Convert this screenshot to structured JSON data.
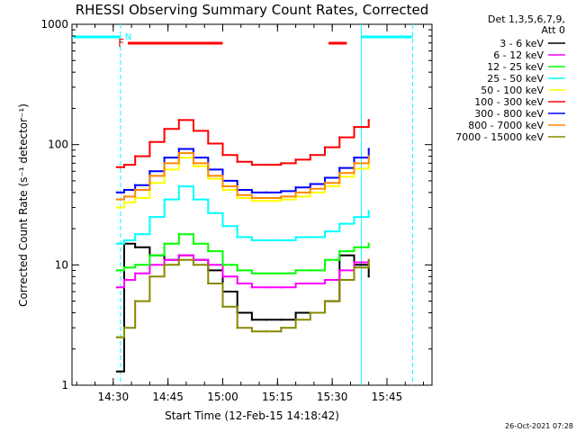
{
  "chart_data": {
    "type": "line",
    "title": "RHESSI Observing Summary Count Rates, Corrected",
    "xlabel": "Start Time (12-Feb-15 14:18:42)",
    "ylabel": "Corrected Count Rate (s⁻¹ detector⁻¹)",
    "y_scale": "log",
    "ylim": [
      1,
      1000
    ],
    "xlim": [
      "14:18:42",
      "15:57:20"
    ],
    "x_ticks": [
      "14:30",
      "14:45",
      "15:00",
      "15:15",
      "15:30",
      "15:45"
    ],
    "y_ticks": [
      "1",
      "10",
      "100",
      "1000"
    ],
    "grid": false,
    "legend_position": "top-right",
    "legend_header": [
      "Det 1,3,5,6,7,9,",
      "Att 0"
    ],
    "timestamp": "26-Oct-2021 07:28",
    "flags": {
      "flare_label": "F",
      "night_label": "N",
      "flare_bars": [
        [
          "14:34",
          "15:00"
        ],
        [
          "15:29",
          "15:34"
        ]
      ],
      "night_bars": [
        [
          "14:18:42",
          "14:32"
        ],
        [
          "15:38",
          "15:52"
        ]
      ],
      "night_boundaries": [
        "14:32",
        "15:38",
        "15:52"
      ],
      "flare_color": "#ff0000",
      "night_color": "#00ffff"
    },
    "series": [
      {
        "name": "3 - 6 keV",
        "color": "#000000",
        "x": [
          "14:31",
          "14:33",
          "14:36",
          "14:40",
          "14:44",
          "14:48",
          "14:52",
          "14:56",
          "15:00",
          "15:04",
          "15:08",
          "15:12",
          "15:16",
          "15:20",
          "15:24",
          "15:28",
          "15:32",
          "15:36",
          "15:40"
        ],
        "values": [
          1.3,
          15,
          14,
          12,
          11,
          12,
          11,
          9,
          6,
          4,
          3.5,
          3.5,
          3.5,
          4,
          4,
          5,
          12,
          10,
          8
        ]
      },
      {
        "name": "6 - 12 keV",
        "color": "#ff00ff",
        "x": [
          "14:31",
          "14:33",
          "14:36",
          "14:40",
          "14:44",
          "14:48",
          "14:52",
          "14:56",
          "15:00",
          "15:04",
          "15:08",
          "15:12",
          "15:16",
          "15:20",
          "15:24",
          "15:28",
          "15:32",
          "15:36",
          "15:40"
        ],
        "values": [
          6.5,
          7.5,
          8.5,
          10,
          11,
          12,
          11,
          10,
          8,
          7,
          6.5,
          6.5,
          6.5,
          7,
          7,
          7.5,
          9,
          10.5,
          11
        ]
      },
      {
        "name": "12 - 25 keV",
        "color": "#00ff00",
        "x": [
          "14:31",
          "14:33",
          "14:36",
          "14:40",
          "14:44",
          "14:48",
          "14:52",
          "14:56",
          "15:00",
          "15:04",
          "15:08",
          "15:12",
          "15:16",
          "15:20",
          "15:24",
          "15:28",
          "15:32",
          "15:36",
          "15:40"
        ],
        "values": [
          9,
          9.5,
          10,
          12,
          15,
          18,
          15,
          13,
          10,
          9,
          8.5,
          8.5,
          8.5,
          9,
          9,
          11,
          13,
          14,
          15
        ]
      },
      {
        "name": "25 - 50 keV",
        "color": "#00ffff",
        "x": [
          "14:31",
          "14:33",
          "14:36",
          "14:40",
          "14:44",
          "14:48",
          "14:52",
          "14:56",
          "15:00",
          "15:04",
          "15:08",
          "15:12",
          "15:16",
          "15:20",
          "15:24",
          "15:28",
          "15:32",
          "15:36",
          "15:40"
        ],
        "values": [
          15,
          16,
          18,
          25,
          35,
          45,
          35,
          27,
          21,
          17,
          16,
          16,
          16,
          17,
          17,
          19,
          22,
          25,
          28
        ]
      },
      {
        "name": "50 - 100 keV",
        "color": "#ffff00",
        "x": [
          "14:31",
          "14:33",
          "14:36",
          "14:40",
          "14:44",
          "14:48",
          "14:52",
          "14:56",
          "15:00",
          "15:04",
          "15:08",
          "15:12",
          "15:16",
          "15:20",
          "15:24",
          "15:28",
          "15:32",
          "15:36",
          "15:40"
        ],
        "values": [
          30,
          33,
          36,
          48,
          62,
          78,
          66,
          52,
          42,
          36,
          34,
          34,
          35,
          37,
          40,
          45,
          54,
          63,
          70
        ]
      },
      {
        "name": "100 - 300 keV",
        "color": "#ff0000",
        "x": [
          "14:31",
          "14:33",
          "14:36",
          "14:40",
          "14:44",
          "14:48",
          "14:52",
          "14:56",
          "15:00",
          "15:04",
          "15:08",
          "15:12",
          "15:16",
          "15:20",
          "15:24",
          "15:28",
          "15:32",
          "15:36",
          "15:40"
        ],
        "values": [
          65,
          68,
          80,
          105,
          135,
          160,
          130,
          102,
          82,
          72,
          68,
          68,
          70,
          75,
          82,
          95,
          115,
          140,
          160
        ]
      },
      {
        "name": "300 - 800 keV",
        "color": "#0000ff",
        "x": [
          "14:31",
          "14:33",
          "14:36",
          "14:40",
          "14:44",
          "14:48",
          "14:52",
          "14:56",
          "15:00",
          "15:04",
          "15:08",
          "15:12",
          "15:16",
          "15:20",
          "15:24",
          "15:28",
          "15:32",
          "15:36",
          "15:40"
        ],
        "values": [
          40,
          42,
          46,
          60,
          78,
          92,
          78,
          62,
          50,
          42,
          40,
          40,
          41,
          44,
          47,
          53,
          64,
          78,
          92
        ]
      },
      {
        "name": "800 - 7000 keV",
        "color": "#ff8800",
        "x": [
          "14:31",
          "14:33",
          "14:36",
          "14:40",
          "14:44",
          "14:48",
          "14:52",
          "14:56",
          "15:00",
          "15:04",
          "15:08",
          "15:12",
          "15:16",
          "15:20",
          "15:24",
          "15:28",
          "15:32",
          "15:36",
          "15:40"
        ],
        "values": [
          35,
          37,
          42,
          55,
          70,
          85,
          70,
          55,
          45,
          38,
          36,
          36,
          37,
          40,
          43,
          48,
          58,
          70,
          80
        ]
      },
      {
        "name": "7000 - 15000 keV",
        "color": "#888800",
        "x": [
          "14:31",
          "14:33",
          "14:36",
          "14:40",
          "14:44",
          "14:48",
          "14:52",
          "14:56",
          "15:00",
          "15:04",
          "15:08",
          "15:12",
          "15:16",
          "15:20",
          "15:24",
          "15:28",
          "15:32",
          "15:36",
          "15:40"
        ],
        "values": [
          2.5,
          3,
          5,
          8,
          10,
          11,
          10,
          7,
          4.5,
          3,
          2.8,
          2.8,
          3,
          3.5,
          4,
          5,
          7.5,
          9.5,
          11
        ]
      }
    ]
  }
}
